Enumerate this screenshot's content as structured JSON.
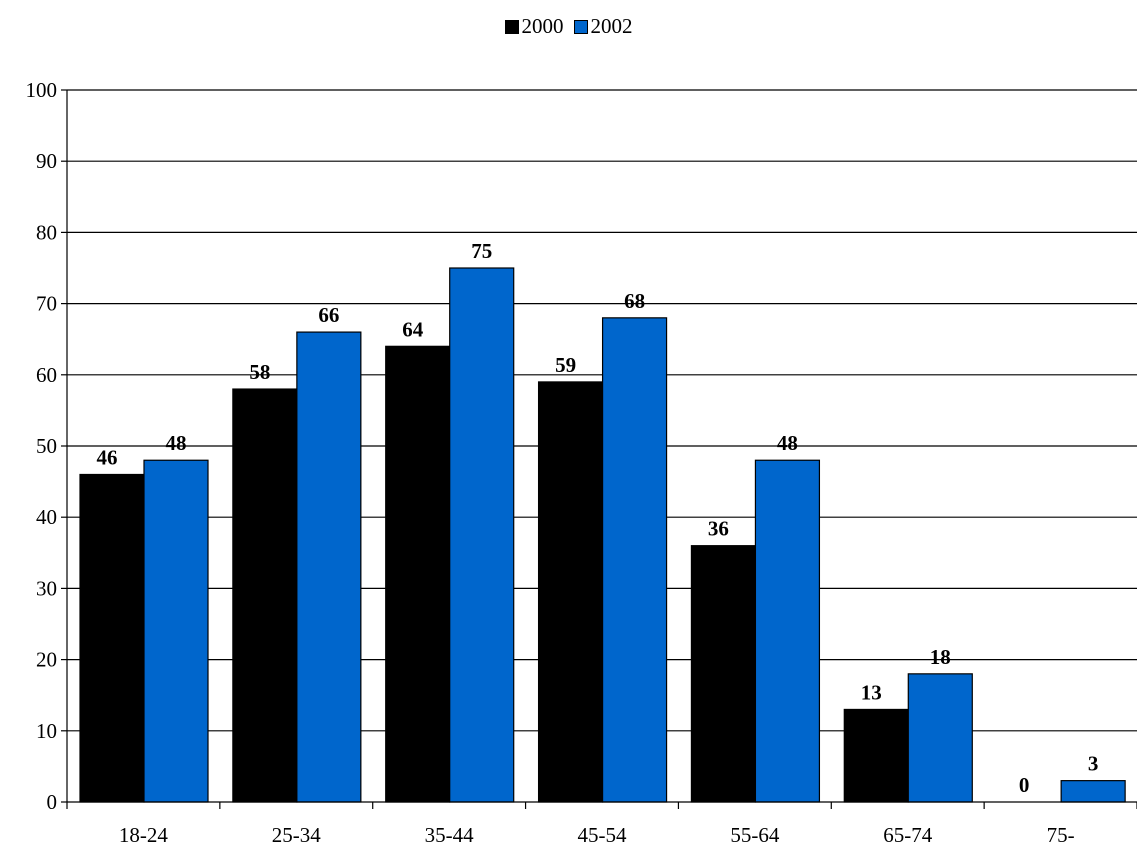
{
  "chart_data": {
    "type": "bar",
    "categories": [
      "18-24",
      "25-34",
      "35-44",
      "45-54",
      "55-64",
      "65-74",
      "75-"
    ],
    "series": [
      {
        "name": "2000",
        "color": "#000000",
        "values": [
          46,
          58,
          64,
          59,
          36,
          13,
          0
        ]
      },
      {
        "name": "2002",
        "color": "#0066CC",
        "values": [
          48,
          66,
          75,
          68,
          48,
          18,
          3
        ]
      }
    ],
    "ylim": [
      0,
      100
    ],
    "yticks": [
      0,
      10,
      20,
      30,
      40,
      50,
      60,
      70,
      80,
      90,
      100
    ],
    "grid": true,
    "legend_position": "top-center",
    "data_labels": true
  }
}
